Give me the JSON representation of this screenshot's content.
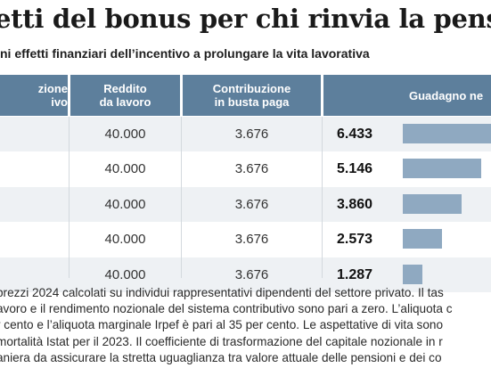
{
  "title": "etti del bonus per chi rinvia la pensione",
  "subtitle": "ni effetti finanziari dell’incentivo a prolungare la vita lavorativa",
  "table": {
    "headers": [
      "zione\nivo",
      "Reddito\nda lavoro",
      "Contribuzione\nin busta paga",
      "Guadagno ne"
    ],
    "rows": [
      {
        "reddito": "40.000",
        "contribuzione": "3.676",
        "guadagno": "6.433",
        "guadagno_value": 6433
      },
      {
        "reddito": "40.000",
        "contribuzione": "3.676",
        "guadagno": "5.146",
        "guadagno_value": 5146
      },
      {
        "reddito": "40.000",
        "contribuzione": "3.676",
        "guadagno": "3.860",
        "guadagno_value": 3860
      },
      {
        "reddito": "40.000",
        "contribuzione": "3.676",
        "guadagno": "2.573",
        "guadagno_value": 2573
      },
      {
        "reddito": "40.000",
        "contribuzione": "3.676",
        "guadagno": "1.287",
        "guadagno_value": 1287
      }
    ]
  },
  "notes": [
    "prezzi 2024 calcolati su individui rappresentativi dipendenti del settore privato. Il tas",
    "avoro e il rendimento nozionale del sistema contributivo sono pari a zero. L’aliquota c",
    "r cento e l’aliquota marginale Irpef è pari al 35 per cento. Le aspettative di vita sono",
    "mortalità Istat per il 2023. Il coefficiente di trasformazione del capitale nozionale in r",
    "aniera da assicurare la stretta uguaglianza tra valore attuale delle pensioni e dei co"
  ],
  "colors": {
    "header_bg": "#5d7f9c",
    "bar": "#8fa9c1",
    "row_alt": "#eef1f4"
  }
}
